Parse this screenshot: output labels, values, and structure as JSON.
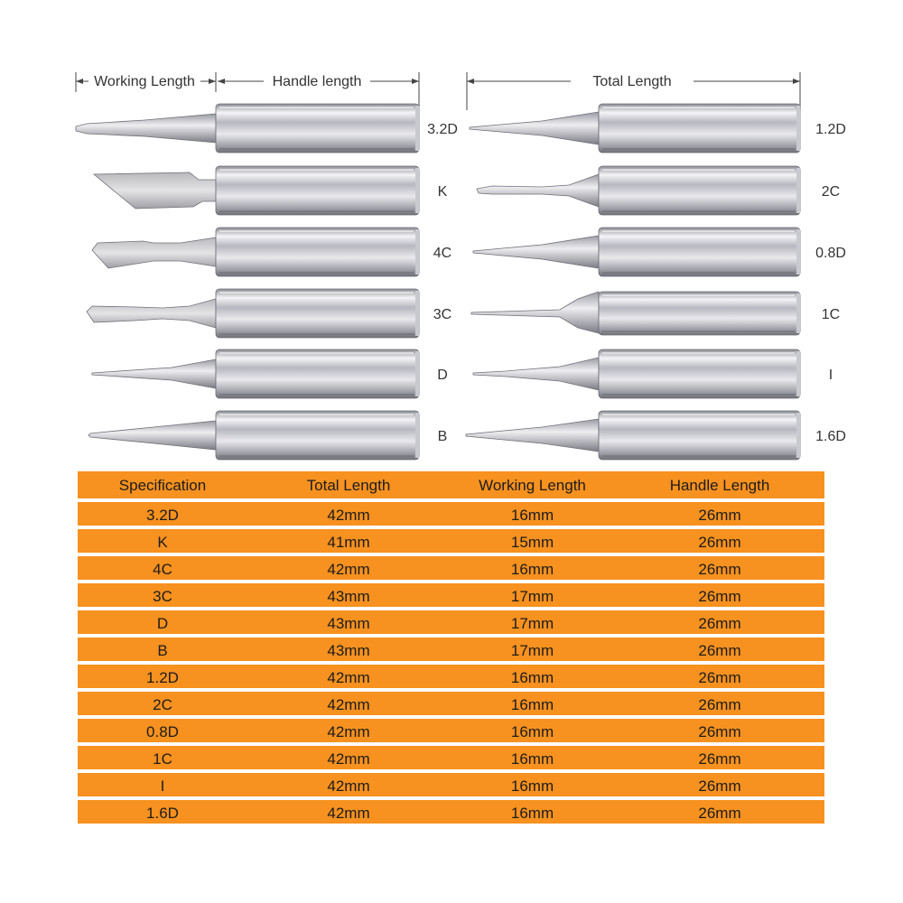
{
  "dimensions": {
    "working_length": "Working Length",
    "handle_length": "Handle length",
    "total_length": "Total Length"
  },
  "left_tips": [
    {
      "label": "3.2D",
      "icon": "chisel-tip-icon"
    },
    {
      "label": "K",
      "icon": "knife-tip-icon"
    },
    {
      "label": "4C",
      "icon": "bevel-tip-icon"
    },
    {
      "label": "3C",
      "icon": "bevel-tip-icon"
    },
    {
      "label": "D",
      "icon": "conical-tip-icon"
    },
    {
      "label": "B",
      "icon": "conical-tip-icon"
    }
  ],
  "right_tips": [
    {
      "label": "1.2D",
      "icon": "conical-tip-icon"
    },
    {
      "label": "2C",
      "icon": "bevel-tip-icon"
    },
    {
      "label": "0.8D",
      "icon": "conical-tip-icon"
    },
    {
      "label": "1C",
      "icon": "bevel-tip-icon"
    },
    {
      "label": "I",
      "icon": "conical-tip-icon"
    },
    {
      "label": "1.6D",
      "icon": "conical-tip-icon"
    }
  ],
  "colors": {
    "table_row": "#f7911f",
    "metal_light": "#f4f4f6",
    "metal_dark": "#7d7e86"
  },
  "table": {
    "headers": [
      "Specification",
      "Total Length",
      "Working Length",
      "Handle Length"
    ],
    "rows": [
      [
        "3.2D",
        "42mm",
        "16mm",
        "26mm"
      ],
      [
        "K",
        "41mm",
        "15mm",
        "26mm"
      ],
      [
        "4C",
        "42mm",
        "16mm",
        "26mm"
      ],
      [
        "3C",
        "43mm",
        "17mm",
        "26mm"
      ],
      [
        "D",
        "43mm",
        "17mm",
        "26mm"
      ],
      [
        "B",
        "43mm",
        "17mm",
        "26mm"
      ],
      [
        "1.2D",
        "42mm",
        "16mm",
        "26mm"
      ],
      [
        "2C",
        "42mm",
        "16mm",
        "26mm"
      ],
      [
        "0.8D",
        "42mm",
        "16mm",
        "26mm"
      ],
      [
        "1C",
        "42mm",
        "16mm",
        "26mm"
      ],
      [
        "I",
        "42mm",
        "16mm",
        "26mm"
      ],
      [
        "1.6D",
        "42mm",
        "16mm",
        "26mm"
      ]
    ]
  }
}
